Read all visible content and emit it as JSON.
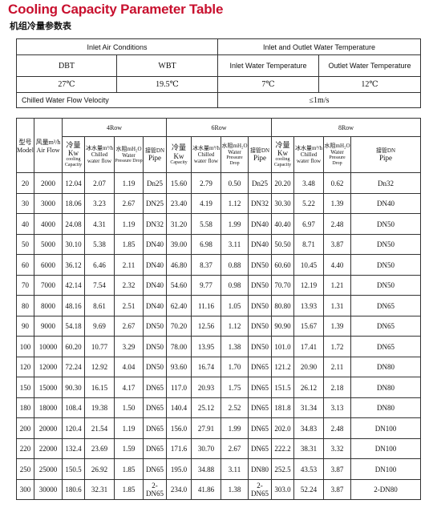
{
  "title": "Cooling Capacity Parameter Table",
  "subtitle": "机组冷量参数表",
  "conditions": {
    "inlet_air": "Inlet Air Conditions",
    "water_temp": "Inlet and Outlet Water Temperature",
    "dbt": "DBT",
    "wbt": "WBT",
    "inlet_water": "Inlet Water Temperature",
    "outlet_water": "Outlet Water Temperature",
    "dbt_value": "27℃",
    "wbt_value": "19.5℃",
    "inlet_value": "7℃",
    "outlet_value": "12℃",
    "flow_label": "Chilled Water Flow Velocity",
    "flow_value": "≤1m/s"
  },
  "spec": {
    "groups": [
      "4Row",
      "6Row",
      "8Row"
    ],
    "model_label": "型号 Model",
    "airflow_label": "风量m³/h Air Flow",
    "cap_cn": "冷量Kw",
    "cap_en": "cooling Capacity",
    "cap_en_6": "Capacity",
    "flow_cn": "冰水量m³/h",
    "flow_en": "Chilled water flow",
    "res_cn": "水阻mH₂O",
    "res_en": "Water",
    "res_en2": "Pressure Drop",
    "pipe_cn": "接管DN",
    "pipe_en": "Pipe",
    "rows": [
      [
        "20",
        "2000",
        "12.04",
        "2.07",
        "1.19",
        "Dn25",
        "15.60",
        "2.79",
        "0.50",
        "Dn25",
        "20.20",
        "3.48",
        "0.62",
        "Dn32"
      ],
      [
        "30",
        "3000",
        "18.06",
        "3.23",
        "2.67",
        "DN25",
        "23.40",
        "4.19",
        "1.12",
        "DN32",
        "30.30",
        "5.22",
        "1.39",
        "DN40"
      ],
      [
        "40",
        "4000",
        "24.08",
        "4.31",
        "1.19",
        "DN32",
        "31.20",
        "5.58",
        "1.99",
        "DN40",
        "40.40",
        "6.97",
        "2.48",
        "DN50"
      ],
      [
        "50",
        "5000",
        "30.10",
        "5.38",
        "1.85",
        "DN40",
        "39.00",
        "6.98",
        "3.11",
        "DN40",
        "50.50",
        "8.71",
        "3.87",
        "DN50"
      ],
      [
        "60",
        "6000",
        "36.12",
        "6.46",
        "2.11",
        "DN40",
        "46.80",
        "8.37",
        "0.88",
        "DN50",
        "60.60",
        "10.45",
        "4.40",
        "DN50"
      ],
      [
        "70",
        "7000",
        "42.14",
        "7.54",
        "2.32",
        "DN40",
        "54.60",
        "9.77",
        "0.98",
        "DN50",
        "70.70",
        "12.19",
        "1.21",
        "DN50"
      ],
      [
        "80",
        "8000",
        "48.16",
        "8.61",
        "2.51",
        "DN40",
        "62.40",
        "11.16",
        "1.05",
        "DN50",
        "80.80",
        "13.93",
        "1.31",
        "DN65"
      ],
      [
        "90",
        "9000",
        "54.18",
        "9.69",
        "2.67",
        "DN50",
        "70.20",
        "12.56",
        "1.12",
        "DN50",
        "90.90",
        "15.67",
        "1.39",
        "DN65"
      ],
      [
        "100",
        "10000",
        "60.20",
        "10.77",
        "3.29",
        "DN50",
        "78.00",
        "13.95",
        "1.38",
        "DN50",
        "101.0",
        "17.41",
        "1.72",
        "DN65"
      ],
      [
        "120",
        "12000",
        "72.24",
        "12.92",
        "4.04",
        "DN50",
        "93.60",
        "16.74",
        "1.70",
        "DN65",
        "121.2",
        "20.90",
        "2.11",
        "DN80"
      ],
      [
        "150",
        "15000",
        "90.30",
        "16.15",
        "4.17",
        "DN65",
        "117.0",
        "20.93",
        "1.75",
        "DN65",
        "151.5",
        "26.12",
        "2.18",
        "DN80"
      ],
      [
        "180",
        "18000",
        "108.4",
        "19.38",
        "1.50",
        "DN65",
        "140.4",
        "25.12",
        "2.52",
        "DN65",
        "181.8",
        "31.34",
        "3.13",
        "DN80"
      ],
      [
        "200",
        "20000",
        "120.4",
        "21.54",
        "1.19",
        "DN65",
        "156.0",
        "27.91",
        "1.99",
        "DN65",
        "202.0",
        "34.83",
        "2.48",
        "DN100"
      ],
      [
        "220",
        "22000",
        "132.4",
        "23.69",
        "1.59",
        "DN65",
        "171.6",
        "30.70",
        "2.67",
        "DN65",
        "222.2",
        "38.31",
        "3.32",
        "DN100"
      ],
      [
        "250",
        "25000",
        "150.5",
        "26.92",
        "1.85",
        "DN65",
        "195.0",
        "34.88",
        "3.11",
        "DN80",
        "252.5",
        "43.53",
        "3.87",
        "DN100"
      ],
      [
        "300",
        "30000",
        "180.6",
        "32.31",
        "1.85",
        "2-DN65",
        "234.0",
        "41.86",
        "1.38",
        "2-DN65",
        "303.0",
        "52.24",
        "3.87",
        "2-DN80"
      ]
    ]
  }
}
